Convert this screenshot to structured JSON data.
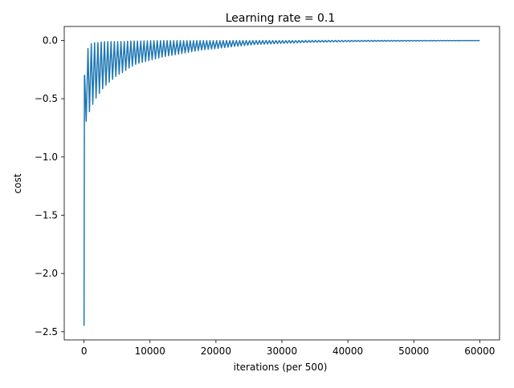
{
  "chart_data": {
    "type": "line",
    "title": "Learning rate = 0.1",
    "xlabel": "iterations (per 500)",
    "ylabel": "cost",
    "xlim": [
      -3000,
      63000
    ],
    "ylim": [
      -2.57,
      0.12
    ],
    "xticks": [
      0,
      10000,
      20000,
      30000,
      40000,
      50000,
      60000
    ],
    "xtick_labels": [
      "0",
      "10000",
      "20000",
      "30000",
      "40000",
      "50000",
      "60000"
    ],
    "yticks": [
      0.0,
      -0.5,
      -1.0,
      -1.5,
      -2.0,
      -2.5
    ],
    "ytick_labels": [
      "0.0",
      "−0.5",
      "−1.0",
      "−1.5",
      "−2.0",
      "−2.5"
    ],
    "grid": false,
    "series": [
      {
        "color": "#1f77b4",
        "x": [
          0,
          100,
          200,
          300,
          500,
          700,
          1000,
          1500,
          2000,
          2500,
          3000,
          4000,
          5000,
          6000,
          7000,
          8000,
          10000,
          12000,
          14000,
          16000,
          18000,
          20000,
          23000,
          26000,
          30000,
          35000,
          40000,
          45000,
          50000,
          55000,
          60000
        ],
        "upper": [
          -2.45,
          -0.3,
          -0.25,
          -0.2,
          -0.1,
          -0.04,
          -0.03,
          -0.02,
          -0.02,
          -0.015,
          -0.01,
          -0.01,
          -0.01,
          -0.01,
          -0.005,
          -0.005,
          -0.003,
          -0.002,
          -0.002,
          -0.002,
          -0.001,
          -0.001,
          -0.001,
          -0.001,
          -0.001,
          0.0,
          0.0,
          0.0,
          0.0,
          0.0,
          0.0
        ],
        "lower": [
          -2.45,
          -0.8,
          -0.75,
          -0.7,
          -0.65,
          -0.62,
          -0.6,
          -0.52,
          -0.48,
          -0.44,
          -0.4,
          -0.35,
          -0.3,
          -0.27,
          -0.23,
          -0.2,
          -0.17,
          -0.14,
          -0.12,
          -0.1,
          -0.08,
          -0.07,
          -0.05,
          -0.035,
          -0.025,
          -0.015,
          -0.01,
          -0.007,
          -0.005,
          -0.003,
          -0.002
        ]
      }
    ]
  }
}
